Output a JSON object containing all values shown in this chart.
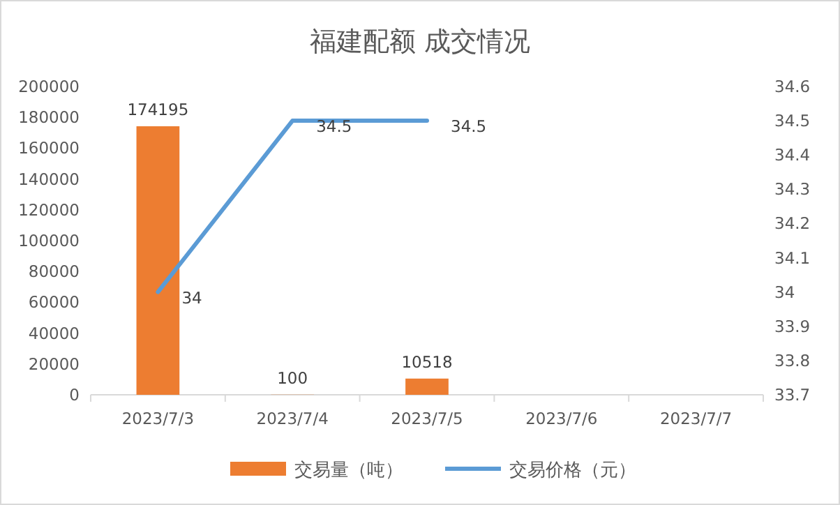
{
  "chart_data": {
    "type": "bar",
    "title": "福建配额 成交情况",
    "categories": [
      "2023/7/3",
      "2023/7/4",
      "2023/7/5",
      "2023/7/6",
      "2023/7/7"
    ],
    "series": [
      {
        "name": "交易量（吨）",
        "color": "#ed7d31",
        "values": [
          174195,
          100,
          10518,
          null,
          null
        ]
      },
      {
        "name": "交易价格（元）",
        "type": "line",
        "axis": "y2",
        "color": "#5b9bd5",
        "values": [
          34,
          34.5,
          34.5,
          null,
          null
        ]
      }
    ],
    "ylim": [
      0,
      200000
    ],
    "yticks": [
      0,
      20000,
      40000,
      60000,
      80000,
      100000,
      120000,
      140000,
      160000,
      180000,
      200000
    ],
    "y2lim": [
      33.7,
      34.6
    ],
    "y2ticks": [
      33.7,
      33.8,
      33.9,
      34,
      34.1,
      34.2,
      34.3,
      34.4,
      34.5,
      34.6
    ],
    "data_labels": true,
    "legend": "bottom",
    "grid": false,
    "marker": "none",
    "line_style": "solid"
  }
}
